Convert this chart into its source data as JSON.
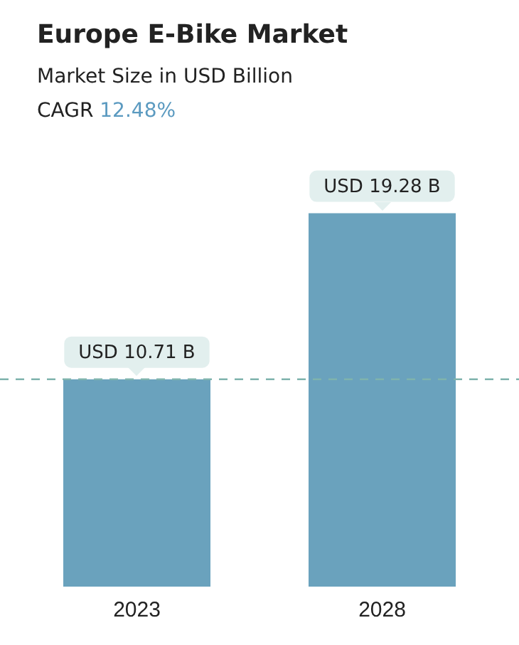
{
  "chart_data": {
    "type": "bar",
    "title": "Europe E-Bike Market",
    "subtitle": "Market Size in USD Billion",
    "annotations": [
      "CAGR 12.48%"
    ],
    "categories": [
      "2023",
      "2028"
    ],
    "values": [
      10.71,
      19.28
    ],
    "color": "#6aa2bd",
    "value_labels": [
      "USD 10.71 B",
      "USD 19.28 B"
    ],
    "ref_lines": [
      {
        "axis": "y",
        "value": 10.71,
        "color": "#7fb3ad",
        "line_style": "dashed"
      }
    ],
    "grid": false,
    "legend": false
  }
}
